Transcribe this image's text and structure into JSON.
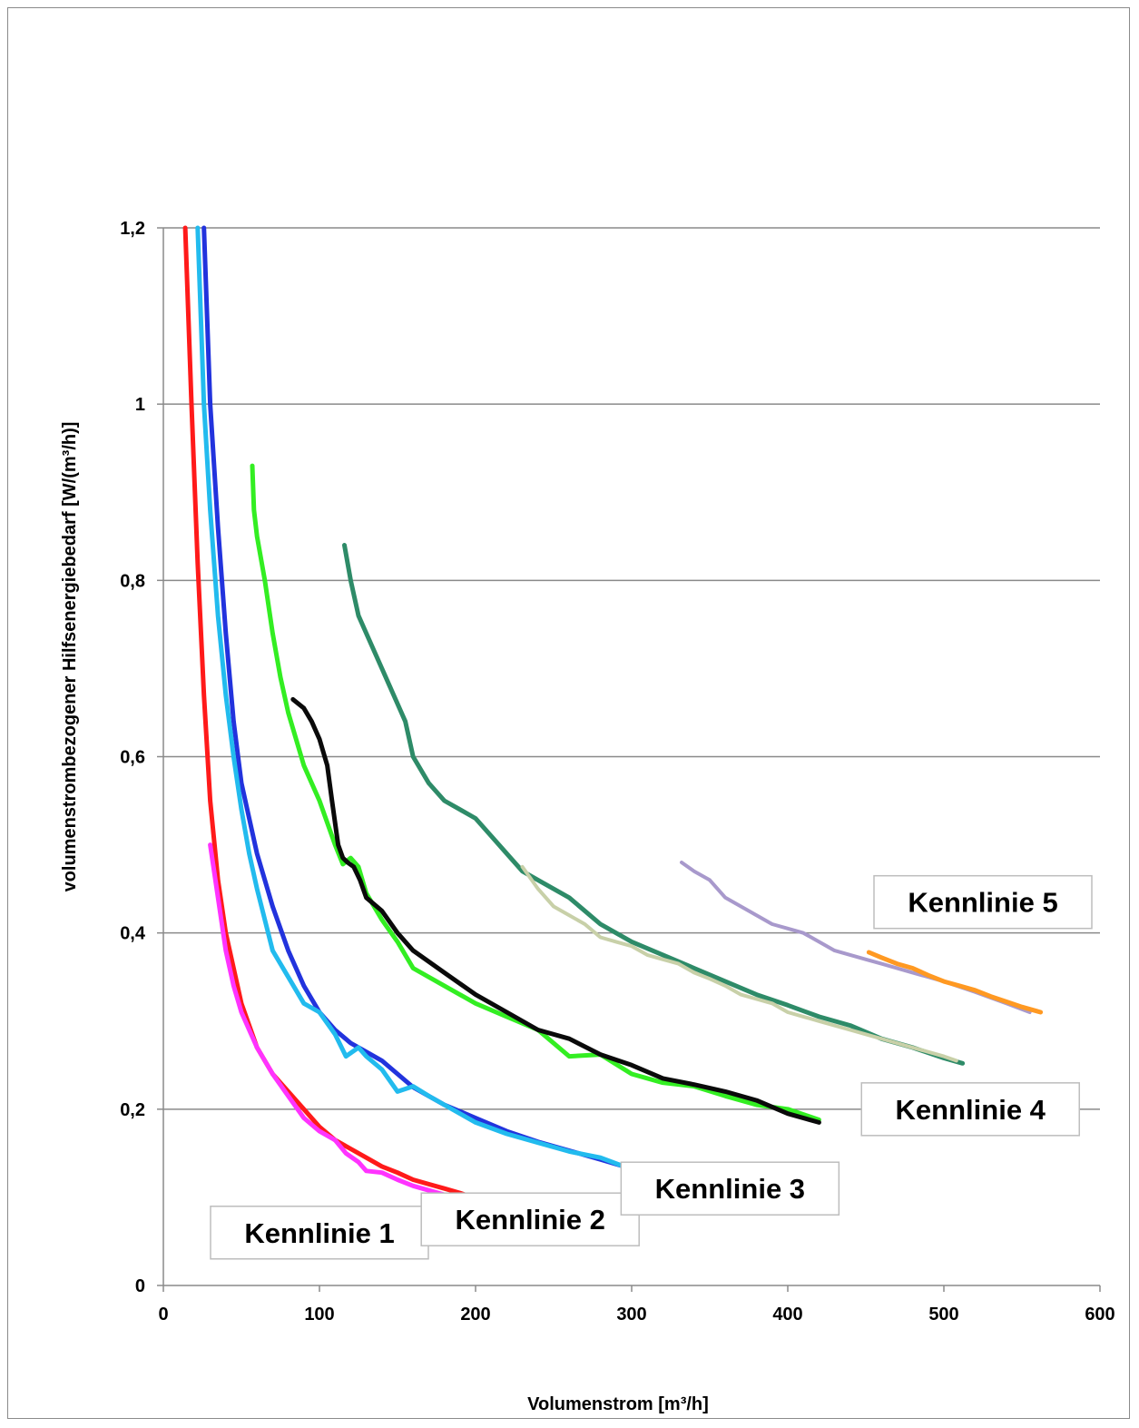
{
  "chart_data": {
    "type": "line",
    "title": "",
    "xlabel": "Volumenstrom [m³/h]",
    "ylabel": "volumenstrombezogener Hilfsenergiebedarf [W/(m³/h)]",
    "xlim": [
      0,
      600
    ],
    "ylim": [
      0,
      1.2
    ],
    "x_ticks": [
      0,
      100,
      200,
      300,
      400,
      500,
      600
    ],
    "x_tick_labels": [
      "0",
      "100",
      "200",
      "300",
      "400",
      "500",
      "600"
    ],
    "y_ticks": [
      0,
      0.2,
      0.4,
      0.6,
      0.8,
      1.0,
      1.2
    ],
    "y_tick_labels": [
      "0",
      "0,2",
      "0,4",
      "0,6",
      "0,8",
      "1",
      "1,2"
    ],
    "grid": "horizontal",
    "legend": "none",
    "labels": [
      {
        "text": "Kennlinie 1",
        "anchor": [
          100,
          0.06
        ]
      },
      {
        "text": "Kennlinie 2",
        "anchor": [
          235,
          0.075
        ]
      },
      {
        "text": "Kennlinie 3",
        "anchor": [
          363,
          0.11
        ]
      },
      {
        "text": "Kennlinie 4",
        "anchor": [
          517,
          0.2
        ]
      },
      {
        "text": "Kennlinie 5",
        "anchor": [
          525,
          0.435
        ]
      }
    ],
    "series": [
      {
        "color": "#ff1a1a",
        "width": 5,
        "x": [
          14,
          18,
          22,
          26,
          30,
          35,
          40,
          50,
          60,
          70,
          80,
          90,
          100,
          110,
          120,
          130,
          140,
          150,
          160,
          170,
          180,
          190,
          198
        ],
        "y": [
          1.2,
          1.0,
          0.82,
          0.67,
          0.55,
          0.46,
          0.4,
          0.32,
          0.27,
          0.24,
          0.22,
          0.2,
          0.18,
          0.165,
          0.155,
          0.145,
          0.135,
          0.128,
          0.12,
          0.115,
          0.11,
          0.105,
          0.1
        ]
      },
      {
        "color": "#ff33ff",
        "width": 5,
        "x": [
          30,
          35,
          40,
          45,
          50,
          55,
          60,
          70,
          80,
          90,
          100,
          110,
          117,
          125,
          130,
          140,
          150,
          160,
          170,
          180,
          190,
          196
        ],
        "y": [
          0.5,
          0.44,
          0.38,
          0.34,
          0.31,
          0.29,
          0.27,
          0.24,
          0.215,
          0.19,
          0.175,
          0.165,
          0.15,
          0.14,
          0.13,
          0.128,
          0.12,
          0.113,
          0.108,
          0.103,
          0.099,
          0.097
        ]
      },
      {
        "color": "#2233dd",
        "width": 5,
        "x": [
          26,
          30,
          35,
          40,
          45,
          50,
          55,
          60,
          70,
          80,
          90,
          100,
          110,
          120,
          130,
          140,
          150,
          160,
          170,
          180,
          200,
          220,
          240,
          260,
          280,
          297
        ],
        "y": [
          1.2,
          1.0,
          0.86,
          0.74,
          0.64,
          0.57,
          0.53,
          0.49,
          0.43,
          0.38,
          0.34,
          0.31,
          0.29,
          0.275,
          0.265,
          0.255,
          0.24,
          0.225,
          0.215,
          0.205,
          0.19,
          0.175,
          0.163,
          0.153,
          0.143,
          0.134
        ]
      },
      {
        "color": "#22bbee",
        "width": 5,
        "x": [
          22,
          26,
          30,
          35,
          40,
          45,
          50,
          55,
          60,
          70,
          80,
          90,
          100,
          110,
          117,
          125,
          130,
          140,
          150,
          160,
          170,
          180,
          190,
          200,
          220,
          240,
          260,
          280,
          295
        ],
        "y": [
          1.2,
          1.0,
          0.88,
          0.76,
          0.67,
          0.6,
          0.54,
          0.49,
          0.45,
          0.38,
          0.35,
          0.32,
          0.31,
          0.285,
          0.26,
          0.27,
          0.26,
          0.245,
          0.22,
          0.226,
          0.215,
          0.205,
          0.195,
          0.185,
          0.172,
          0.162,
          0.152,
          0.145,
          0.135
        ]
      },
      {
        "color": "#33ee22",
        "width": 5,
        "x": [
          57,
          58,
          60,
          65,
          70,
          75,
          80,
          90,
          100,
          110,
          115,
          120,
          125,
          130,
          140,
          150,
          160,
          180,
          200,
          220,
          240,
          260,
          280,
          300,
          320,
          340,
          360,
          380,
          400,
          420
        ],
        "y": [
          0.93,
          0.88,
          0.85,
          0.8,
          0.74,
          0.69,
          0.65,
          0.59,
          0.55,
          0.5,
          0.478,
          0.485,
          0.475,
          0.445,
          0.415,
          0.39,
          0.36,
          0.34,
          0.32,
          0.305,
          0.29,
          0.26,
          0.262,
          0.24,
          0.23,
          0.226,
          0.215,
          0.205,
          0.2,
          0.188
        ]
      },
      {
        "color": "#0a0a0a",
        "width": 5,
        "x": [
          83,
          90,
          95,
          100,
          105,
          108,
          112,
          115,
          118,
          122,
          126,
          130,
          140,
          150,
          160,
          180,
          200,
          220,
          240,
          260,
          280,
          300,
          320,
          340,
          360,
          380,
          400,
          420
        ],
        "y": [
          0.665,
          0.655,
          0.64,
          0.62,
          0.59,
          0.55,
          0.5,
          0.485,
          0.48,
          0.475,
          0.46,
          0.44,
          0.425,
          0.4,
          0.38,
          0.355,
          0.33,
          0.31,
          0.29,
          0.28,
          0.262,
          0.25,
          0.235,
          0.228,
          0.22,
          0.21,
          0.195,
          0.185
        ]
      },
      {
        "color": "#2e8b68",
        "width": 5,
        "x": [
          116,
          120,
          125,
          130,
          135,
          140,
          145,
          150,
          155,
          160,
          170,
          180,
          190,
          200,
          210,
          220,
          230,
          240,
          260,
          280,
          300,
          320,
          340,
          360,
          380,
          400,
          420,
          440,
          460,
          480,
          500,
          512
        ],
        "y": [
          0.84,
          0.8,
          0.76,
          0.74,
          0.72,
          0.7,
          0.68,
          0.66,
          0.64,
          0.6,
          0.57,
          0.55,
          0.54,
          0.53,
          0.51,
          0.49,
          0.47,
          0.46,
          0.44,
          0.41,
          0.39,
          0.375,
          0.36,
          0.345,
          0.33,
          0.318,
          0.305,
          0.295,
          0.28,
          0.27,
          0.258,
          0.252
        ]
      },
      {
        "color": "#c8d0a8",
        "width": 4,
        "x": [
          230,
          240,
          250,
          260,
          270,
          280,
          290,
          300,
          310,
          320,
          330,
          340,
          350,
          360,
          370,
          380,
          390,
          400,
          410,
          420,
          440,
          460,
          480,
          500,
          508
        ],
        "y": [
          0.475,
          0.45,
          0.43,
          0.42,
          0.41,
          0.395,
          0.39,
          0.385,
          0.375,
          0.37,
          0.365,
          0.355,
          0.348,
          0.34,
          0.33,
          0.325,
          0.32,
          0.31,
          0.305,
          0.3,
          0.29,
          0.28,
          0.27,
          0.26,
          0.255
        ]
      },
      {
        "color": "#a899cc",
        "width": 4,
        "x": [
          332,
          340,
          350,
          360,
          370,
          380,
          390,
          400,
          410,
          420,
          430,
          440,
          450,
          460,
          480,
          500,
          520,
          540,
          555
        ],
        "y": [
          0.48,
          0.47,
          0.46,
          0.44,
          0.43,
          0.42,
          0.41,
          0.405,
          0.4,
          0.39,
          0.38,
          0.375,
          0.37,
          0.365,
          0.355,
          0.345,
          0.333,
          0.32,
          0.31
        ]
      },
      {
        "color": "#ff9922",
        "width": 5,
        "x": [
          452,
          460,
          470,
          480,
          490,
          500,
          510,
          520,
          530,
          540,
          550,
          562
        ],
        "y": [
          0.378,
          0.372,
          0.365,
          0.36,
          0.352,
          0.345,
          0.34,
          0.335,
          0.328,
          0.322,
          0.316,
          0.31
        ]
      }
    ]
  }
}
